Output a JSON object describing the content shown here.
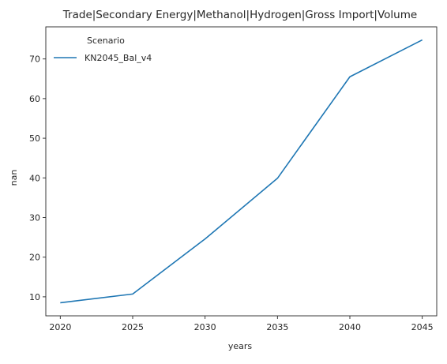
{
  "chart_data": {
    "type": "line",
    "title": "Trade|Secondary Energy|Methanol|Hydrogen|Gross Import|Volume",
    "xlabel": "years",
    "ylabel": "nan",
    "x": [
      2020,
      2025,
      2030,
      2035,
      2040,
      2045
    ],
    "series": [
      {
        "name": "KN2045_Bal_v4",
        "color": "#1f77b4",
        "values": [
          8.5,
          10.7,
          24.6,
          39.9,
          65.5,
          74.8
        ]
      }
    ],
    "xlim": [
      2019,
      2046
    ],
    "ylim": [
      5.2,
      78.1
    ],
    "xticks": [
      2020,
      2025,
      2030,
      2035,
      2040,
      2045
    ],
    "yticks": [
      10,
      20,
      30,
      40,
      50,
      60,
      70
    ],
    "legend": {
      "title": "Scenario",
      "placement": "top-left"
    },
    "grid": false
  }
}
